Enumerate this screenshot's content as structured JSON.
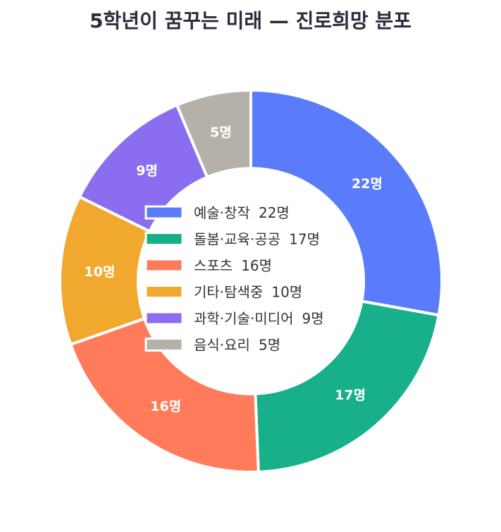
{
  "chart_data": {
    "type": "pie",
    "variant": "donut",
    "title": "5학년이 꿈꾸는 미래 — 진로희망 분포",
    "unit_suffix": "명",
    "legend_position": "center",
    "slices": [
      {
        "name": "예술·창작",
        "value": 22,
        "label": "22명",
        "legend_value": "22명",
        "color": "#5b7cfa"
      },
      {
        "name": "돌봄·교육·공공",
        "value": 17,
        "label": "17명",
        "legend_value": "17명",
        "color": "#17b08a"
      },
      {
        "name": "스포츠",
        "value": 16,
        "label": "16명",
        "legend_value": "16명",
        "color": "#ff7b5a"
      },
      {
        "name": "기타·탐색중",
        "value": 10,
        "label": "10명",
        "legend_value": "10명",
        "color": "#f0a92e"
      },
      {
        "name": "과학·기술·미디어",
        "value": 9,
        "label": "9명",
        "legend_value": "9명",
        "color": "#8b6ef0"
      },
      {
        "name": "음식·요리",
        "value": 5,
        "label": "5명",
        "legend_value": "5명",
        "color": "#b5b1a8"
      }
    ]
  }
}
